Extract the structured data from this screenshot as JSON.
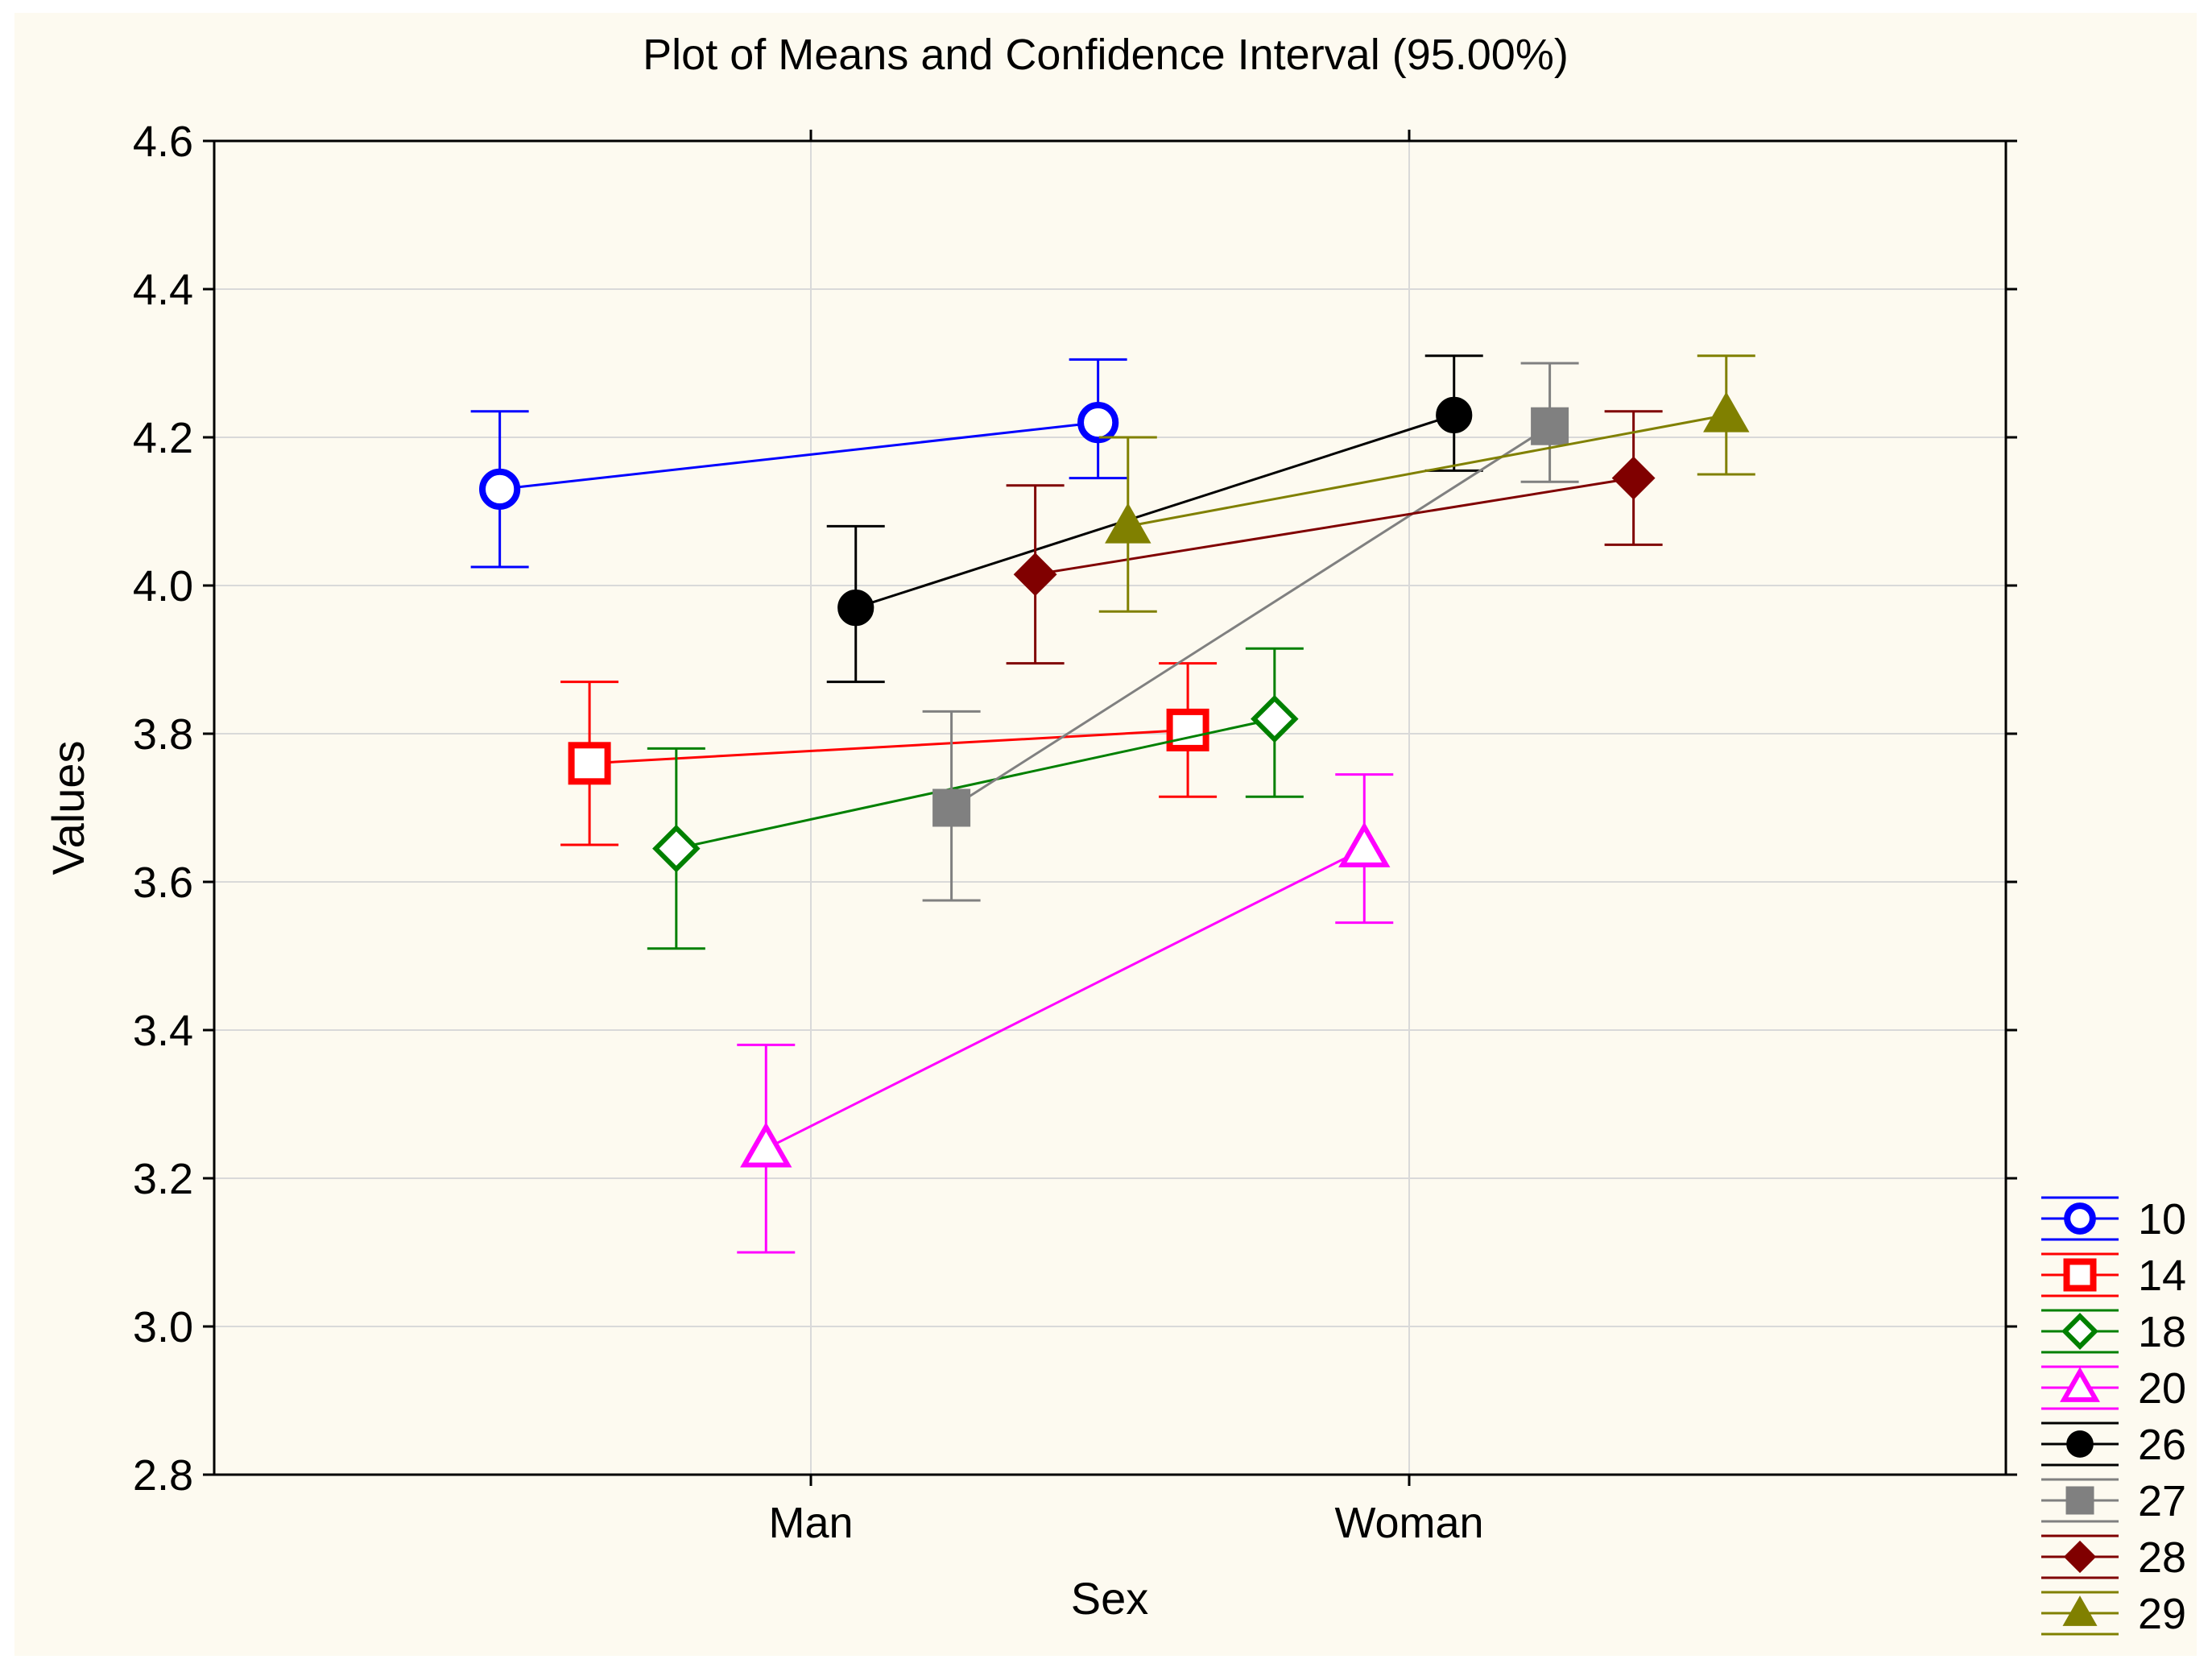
{
  "chart_data": {
    "type": "line",
    "title": "Plot of Means and Confidence Interval (95.00%)",
    "xlabel": "Sex",
    "ylabel": "Values",
    "categories": [
      "Man",
      "Woman"
    ],
    "ylim": [
      2.8,
      4.6
    ],
    "yticks": [
      "2.8",
      "3.0",
      "3.2",
      "3.4",
      "3.6",
      "3.8",
      "4.0",
      "4.2",
      "4.4",
      "4.6"
    ],
    "grid": true,
    "legend_position": "bottom-right",
    "series": [
      {
        "name": "10",
        "color": "#0000ff",
        "marker": "circle-open",
        "x": [
          -0.52,
          0.48
        ],
        "mean": [
          4.13,
          4.22
        ],
        "lower": [
          4.025,
          4.145
        ],
        "upper": [
          4.235,
          4.305
        ]
      },
      {
        "name": "14",
        "color": "#ff0000",
        "marker": "square-open",
        "x": [
          -0.37,
          0.63
        ],
        "mean": [
          3.76,
          3.805
        ],
        "lower": [
          3.65,
          3.715
        ],
        "upper": [
          3.87,
          3.895
        ]
      },
      {
        "name": "18",
        "color": "#008000",
        "marker": "diamond-open",
        "x": [
          -0.225,
          0.775
        ],
        "mean": [
          3.645,
          3.82
        ],
        "lower": [
          3.51,
          3.715
        ],
        "upper": [
          3.78,
          3.915
        ]
      },
      {
        "name": "20",
        "color": "#ff00ff",
        "marker": "triangle-open",
        "x": [
          -0.075,
          0.925
        ],
        "mean": [
          3.24,
          3.645
        ],
        "lower": [
          3.1,
          3.545
        ],
        "upper": [
          3.38,
          3.745
        ]
      },
      {
        "name": "26",
        "color": "#000000",
        "marker": "circle",
        "x": [
          0.075,
          1.075
        ],
        "mean": [
          3.97,
          4.23
        ],
        "lower": [
          3.87,
          4.155
        ],
        "upper": [
          4.08,
          4.31
        ]
      },
      {
        "name": "27",
        "color": "#808080",
        "marker": "square",
        "x": [
          0.235,
          1.235
        ],
        "mean": [
          3.7,
          4.215
        ],
        "lower": [
          3.575,
          4.14
        ],
        "upper": [
          3.83,
          4.3
        ]
      },
      {
        "name": "28",
        "color": "#800000",
        "marker": "diamond",
        "x": [
          0.375,
          1.375
        ],
        "mean": [
          4.015,
          4.145
        ],
        "lower": [
          3.895,
          4.055
        ],
        "upper": [
          4.135,
          4.235
        ]
      },
      {
        "name": "29",
        "color": "#808000",
        "marker": "triangle",
        "x": [
          0.53,
          1.53
        ],
        "mean": [
          4.08,
          4.23
        ],
        "lower": [
          3.965,
          4.15
        ],
        "upper": [
          4.2,
          4.31
        ]
      }
    ]
  }
}
